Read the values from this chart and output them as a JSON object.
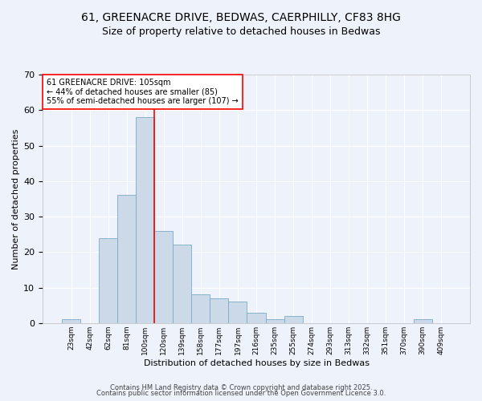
{
  "title_line1": "61, GREENACRE DRIVE, BEDWAS, CAERPHILLY, CF83 8HG",
  "title_line2": "Size of property relative to detached houses in Bedwas",
  "xlabel": "Distribution of detached houses by size in Bedwas",
  "ylabel": "Number of detached properties",
  "bin_labels": [
    "23sqm",
    "42sqm",
    "62sqm",
    "81sqm",
    "100sqm",
    "120sqm",
    "139sqm",
    "158sqm",
    "177sqm",
    "197sqm",
    "216sqm",
    "235sqm",
    "255sqm",
    "274sqm",
    "293sqm",
    "313sqm",
    "332sqm",
    "351sqm",
    "370sqm",
    "390sqm",
    "409sqm"
  ],
  "values": [
    1,
    0,
    24,
    36,
    58,
    26,
    22,
    8,
    7,
    6,
    3,
    1,
    2,
    0,
    0,
    0,
    0,
    0,
    0,
    1,
    0
  ],
  "bar_color": "#ccd9e8",
  "bar_edge_color": "#7aaac8",
  "red_line_x": 4.5,
  "red_line_label": "61 GREENACRE DRIVE: 105sqm",
  "annotation_line2": "← 44% of detached houses are smaller (85)",
  "annotation_line3": "55% of semi-detached houses are larger (107) →",
  "annotation_box_color": "white",
  "annotation_box_edge_color": "red",
  "ylim": [
    0,
    70
  ],
  "yticks": [
    0,
    10,
    20,
    30,
    40,
    50,
    60,
    70
  ],
  "footnote1": "Contains HM Land Registry data © Crown copyright and database right 2025.",
  "footnote2": "Contains public sector information licensed under the Open Government Licence 3.0.",
  "background_color": "#eef2fb",
  "plot_bg_color": "#eef2fb",
  "grid_color": "#ffffff",
  "title_fontsize": 10,
  "subtitle_fontsize": 9,
  "ylabel_fontsize": 8,
  "xlabel_fontsize": 8,
  "tick_fontsize": 6.5,
  "annotation_fontsize": 7,
  "footnote_fontsize": 6
}
